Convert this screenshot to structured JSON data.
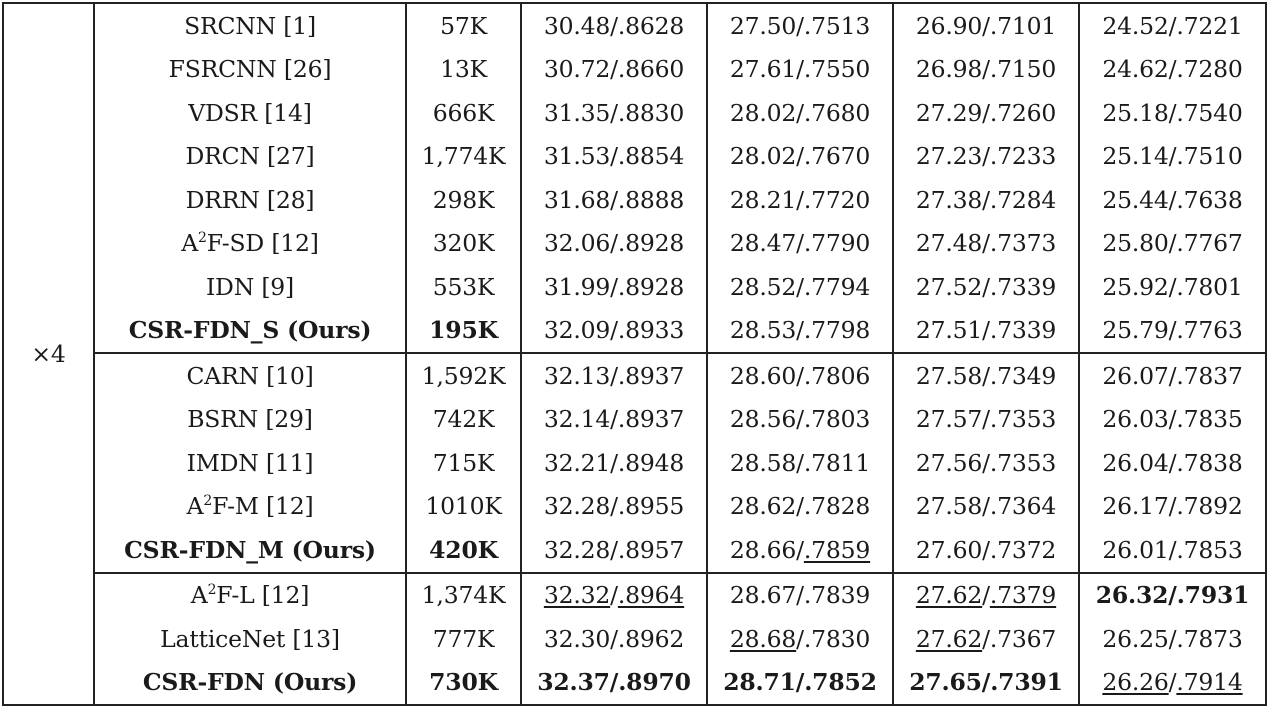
{
  "table": {
    "scale_label": "×4",
    "rows": [
      {
        "method": "SRCNN [1]",
        "params": "57K",
        "c1": "30.48/.8628",
        "c2": "27.50/.7513",
        "c3": "26.90/.7101",
        "c4": "24.52/.7221"
      },
      {
        "method": "FSRCNN [26]",
        "params": "13K",
        "c1": "30.72/.8660",
        "c2": "27.61/.7550",
        "c3": "26.98/.7150",
        "c4": "24.62/.7280"
      },
      {
        "method": "VDSR [14]",
        "params": "666K",
        "c1": "31.35/.8830",
        "c2": "28.02/.7680",
        "c3": "27.29/.7260",
        "c4": "25.18/.7540"
      },
      {
        "method": "DRCN [27]",
        "params": "1,774K",
        "c1": "31.53/.8854",
        "c2": "28.02/.7670",
        "c3": "27.23/.7233",
        "c4": "25.14/.7510"
      },
      {
        "method": "DRRN [28]",
        "params": "298K",
        "c1": "31.68/.8888",
        "c2": "28.21/.7720",
        "c3": "27.38/.7284",
        "c4": "25.44/.7638"
      },
      {
        "method_pre": "A",
        "method_sup": "2",
        "method_post": "F-SD [12]",
        "params": "320K",
        "c1": "32.06/.8928",
        "c2": "28.47/.7790",
        "c3": "27.48/.7373",
        "c4": "25.80/.7767"
      },
      {
        "method": "IDN [9]",
        "params": "553K",
        "c1": "31.99/.8928",
        "c2": "28.52/.7794",
        "c3": "27.52/.7339",
        "c4": "25.92/.7801"
      },
      {
        "method": "CSR-FDN_S (Ours)",
        "params": "195K",
        "c1": "32.09/.8933",
        "c2": "28.53/.7798",
        "c3": "27.51/.7339",
        "c4": "25.79/.7763"
      },
      {
        "method": "CARN [10]",
        "params": "1,592K",
        "c1": "32.13/.8937",
        "c2": "28.60/.7806",
        "c3": "27.58/.7349",
        "c4": "26.07/.7837"
      },
      {
        "method": "BSRN [29]",
        "params": "742K",
        "c1": "32.14/.8937",
        "c2": "28.56/.7803",
        "c3": "27.57/.7353",
        "c4": "26.03/.7835"
      },
      {
        "method": "IMDN [11]",
        "params": "715K",
        "c1": "32.21/.8948",
        "c2": "28.58/.7811",
        "c3": "27.56/.7353",
        "c4": "26.04/.7838"
      },
      {
        "method_pre": "A",
        "method_sup": "2",
        "method_post": "F-M [12]",
        "params": "1010K",
        "c1": "32.28/.8955",
        "c2": "28.62/.7828",
        "c3": "27.58/.7364",
        "c4": "26.17/.7892"
      },
      {
        "method": "CSR-FDN_M (Ours)",
        "params": "420K",
        "c1": "32.28/.8957",
        "c2a": "28.66/",
        "c2b": ".7859",
        "c3": "27.60/.7372",
        "c4": "26.01/.7853"
      },
      {
        "method_pre": "A",
        "method_sup": "2",
        "method_post": "F-L [12]",
        "params": "1,374K",
        "c1a": "32.32",
        "c1s": "/",
        "c1b": ".8964",
        "c2": "28.67/.7839",
        "c3a": "27.62",
        "c3s": "/",
        "c3b": ".7379",
        "c4": "26.32/.7931"
      },
      {
        "method": "LatticeNet [13]",
        "params": "777K",
        "c1": "32.30/.8962",
        "c2a": "28.68",
        "c2b": "/.7830",
        "c3a": "27.62",
        "c3b": "/.7367",
        "c4": "26.25/.7873"
      },
      {
        "method": "CSR-FDN (Ours)",
        "params": "730K",
        "c1": "32.37/.8970",
        "c2": "28.71/.7852",
        "c3": "27.65/.7391",
        "c4a": "26.26",
        "c4s": "/",
        "c4b": ".7914"
      }
    ]
  }
}
